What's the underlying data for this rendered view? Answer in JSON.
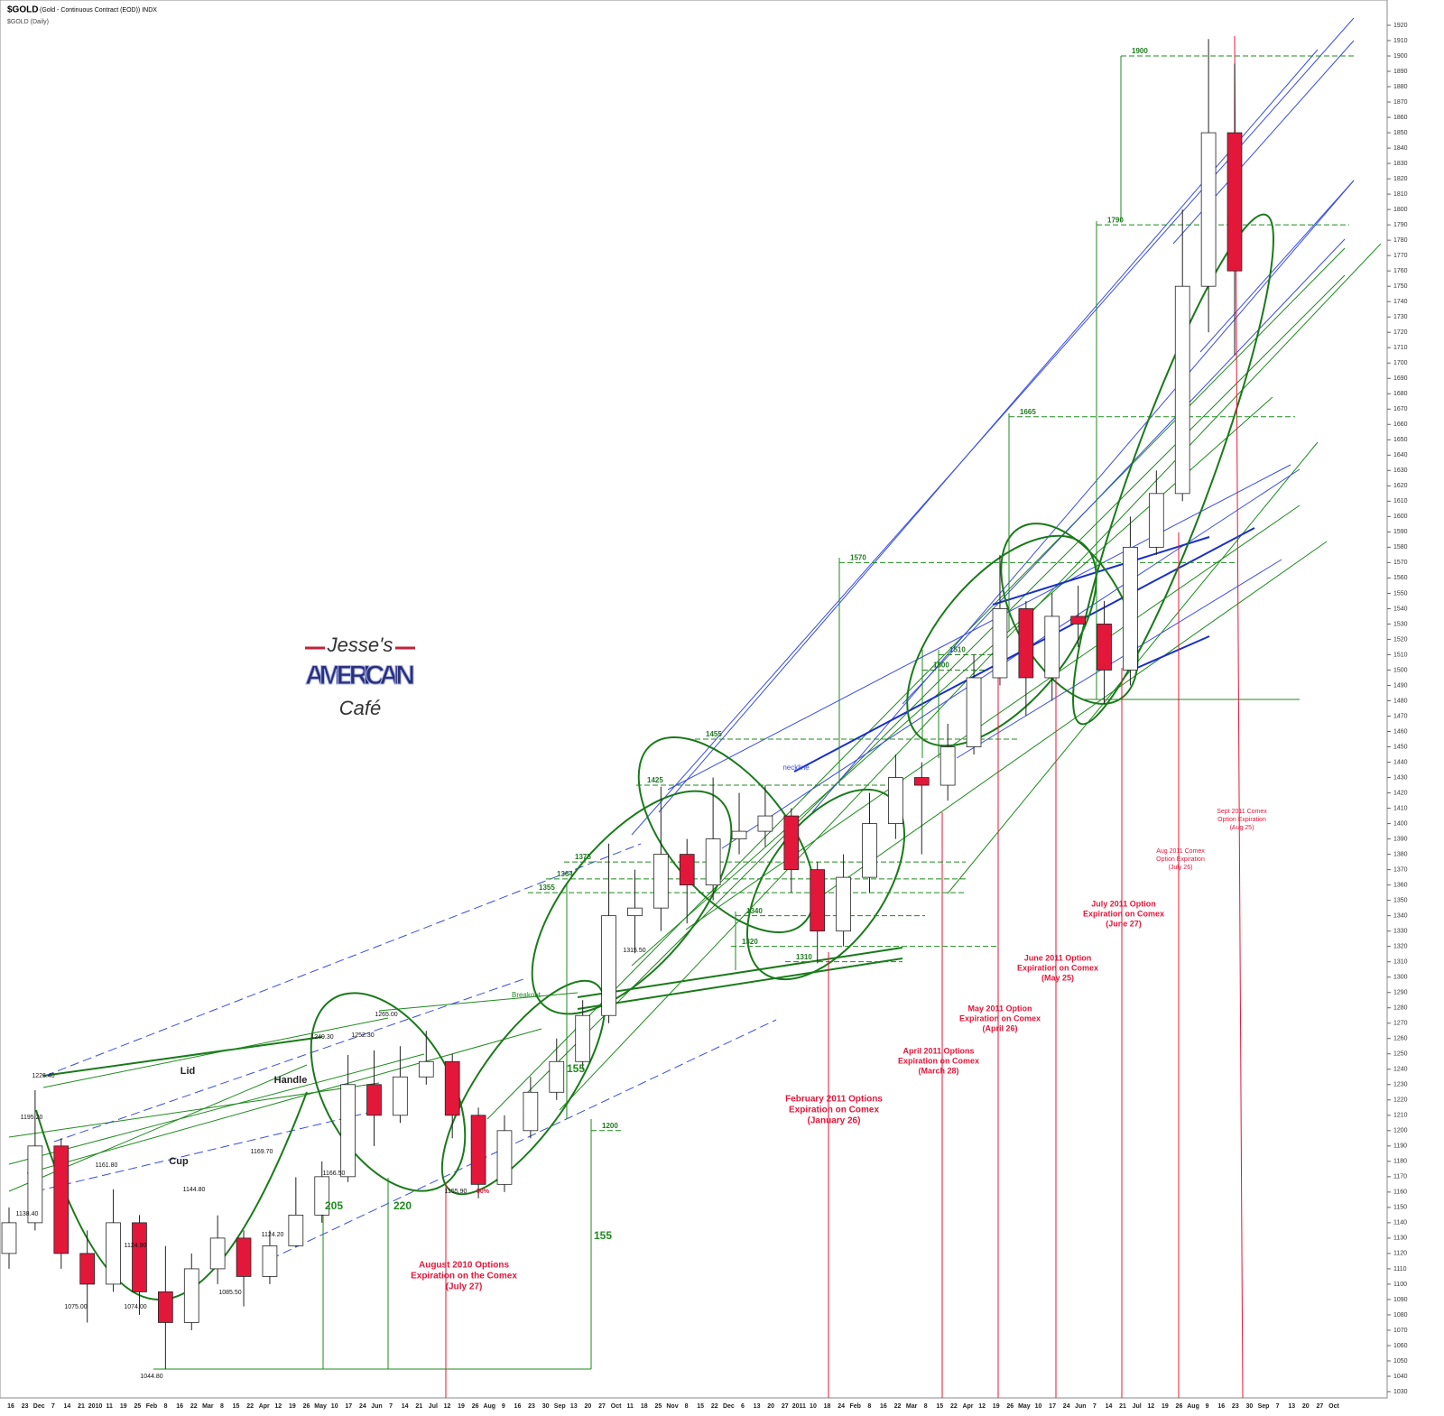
{
  "chart_data": {
    "type": "candlestick",
    "ticker": "$GOLD",
    "title": "(Gold - Continuous Contract (EOD)) INDX",
    "subtitle": "$GOLD (Daily)",
    "logo": {
      "top": "Jesse's",
      "middle": "AMERICAIN",
      "bottom": "Café"
    },
    "open": [
      1120,
      1140,
      1190,
      1120,
      1100,
      1140,
      1095,
      1075,
      1110,
      1130,
      1105,
      1125,
      1145,
      1170,
      1230,
      1210,
      1235,
      1245,
      1210,
      1165,
      1200,
      1225,
      1245,
      1275,
      1340,
      1345,
      1380,
      1360,
      1390,
      1395,
      1405,
      1370,
      1330,
      1365,
      1400,
      1430,
      1425,
      1450,
      1495,
      1540,
      1495,
      1535,
      1530,
      1500,
      1580,
      1615,
      1750,
      1850
    ],
    "high": [
      1150,
      1226.4,
      1195,
      1135,
      1161.8,
      1145,
      1124.9,
      1120,
      1144.8,
      1135,
      1135,
      1169.7,
      1180,
      1249.3,
      1252.3,
      1255,
      1265,
      1250,
      1215,
      1210,
      1235,
      1260,
      1285,
      1387,
      1370,
      1424,
      1390,
      1430,
      1420,
      1425,
      1410,
      1375,
      1380,
      1420,
      1445,
      1440,
      1465,
      1510,
      1575,
      1545,
      1550,
      1555,
      1545,
      1600,
      1630,
      1800,
      1911,
      1895
    ],
    "low": [
      1110,
      1135,
      1110,
      1075,
      1095,
      1080,
      1044.8,
      1070,
      1100,
      1085.5,
      1100,
      1124.2,
      1140,
      1166.5,
      1190,
      1205,
      1230,
      1195,
      1155.9,
      1160,
      1195,
      1220,
      1240,
      1270,
      1315.5,
      1330,
      1335,
      1350,
      1380,
      1385,
      1355,
      1309,
      1320,
      1355,
      1390,
      1380,
      1415,
      1445,
      1490,
      1470,
      1480,
      1515,
      1478,
      1490,
      1575,
      1610,
      1720,
      1705
    ],
    "close": [
      1140,
      1190,
      1120,
      1100,
      1140,
      1095,
      1075,
      1110,
      1130,
      1105,
      1125,
      1145,
      1170,
      1230,
      1210,
      1235,
      1245,
      1210,
      1165,
      1200,
      1225,
      1245,
      1275,
      1340,
      1345,
      1380,
      1360,
      1390,
      1395,
      1405,
      1370,
      1330,
      1365,
      1400,
      1430,
      1425,
      1450,
      1495,
      1540,
      1495,
      1535,
      1530,
      1500,
      1580,
      1615,
      1750,
      1850,
      1760
    ],
    "up_color": "#ffffff",
    "down_color": "#e3173a",
    "wick_color": "#222222",
    "ylim": [
      1030,
      1920
    ],
    "yticks": [
      1030,
      1040,
      1050,
      1060,
      1070,
      1080,
      1090,
      1100,
      1110,
      1120,
      1130,
      1140,
      1150,
      1160,
      1170,
      1180,
      1190,
      1200,
      1210,
      1220,
      1230,
      1240,
      1250,
      1260,
      1270,
      1280,
      1290,
      1300,
      1310,
      1320,
      1330,
      1340,
      1350,
      1360,
      1370,
      1380,
      1390,
      1400,
      1410,
      1420,
      1430,
      1440,
      1450,
      1460,
      1470,
      1480,
      1490,
      1500,
      1510,
      1520,
      1530,
      1540,
      1550,
      1560,
      1570,
      1580,
      1590,
      1600,
      1610,
      1620,
      1630,
      1640,
      1650,
      1660,
      1670,
      1680,
      1690,
      1700,
      1710,
      1720,
      1730,
      1740,
      1750,
      1760,
      1770,
      1780,
      1790,
      1800,
      1810,
      1820,
      1830,
      1840,
      1850,
      1860,
      1870,
      1880,
      1890,
      1900,
      1910,
      1920
    ],
    "xtick_labels": [
      "16",
      "23",
      "Dec",
      "7",
      "14",
      "21",
      "2010",
      "11",
      "19",
      "25",
      "Feb",
      "8",
      "16",
      "22",
      "Mar",
      "8",
      "15",
      "22",
      "Apr",
      "12",
      "19",
      "26",
      "May",
      "10",
      "17",
      "24",
      "Jun",
      "7",
      "14",
      "21",
      "Jul",
      "12",
      "19",
      "26",
      "Aug",
      "9",
      "16",
      "23",
      "30",
      "Sep",
      "13",
      "20",
      "27",
      "Oct",
      "11",
      "18",
      "25",
      "Nov",
      "8",
      "15",
      "22",
      "Dec",
      "6",
      "13",
      "20",
      "27",
      "2011",
      "10",
      "18",
      "24",
      "Feb",
      "8",
      "16",
      "22",
      "Mar",
      "8",
      "15",
      "22",
      "Apr",
      "12",
      "19",
      "26",
      "May",
      "10",
      "17",
      "24",
      "Jun",
      "7",
      "14",
      "21",
      "Jul",
      "12",
      "19",
      "26",
      "Aug",
      "9",
      "16",
      "23",
      "30",
      "Sep",
      "7",
      "13",
      "20",
      "27",
      "Oct"
    ],
    "levels": [
      1900,
      1790,
      1665,
      1570,
      1510,
      1500,
      1455,
      1425,
      1375,
      1364,
      1355,
      1340,
      1320,
      1310,
      1200
    ],
    "price_labels": [
      "1138.40",
      "1226.40",
      "1195.20",
      "1161.80",
      "1124.90",
      "1075.00",
      "1074.00",
      "1044.80",
      "1144.80",
      "1085.50",
      "1169.70",
      "1124.20",
      "1249.30",
      "1166.50",
      "1252.30",
      "1265.00",
      "1155.90",
      "1315.50"
    ],
    "annotations": [
      "Lid",
      "Handle",
      "Cup",
      "Breakout",
      "neckline",
      "50%",
      "205",
      "220",
      "155",
      "155"
    ],
    "notes": [
      [
        "August 2010 Options",
        "Expiration on the Comex",
        "(July 27)"
      ],
      [
        "February 2011 Options",
        "Expiration on Comex",
        "(January 26)"
      ],
      [
        "April 2011 Options",
        "Expiration on Comex",
        "(March 28)"
      ],
      [
        "May 2011 Option",
        "Expiration on Comex",
        "(April 26)"
      ],
      [
        "June 2011 Option",
        "Expiration on Comex",
        "(May 25)"
      ],
      [
        "July 2011 Option",
        "Expiration on Comex",
        "(June 27)"
      ],
      [
        "Aug 2011 Comex",
        "Option Expiration",
        "(July 26)"
      ],
      [
        "Sept 2011 Comex",
        "Option Expiration",
        "(Aug 25)"
      ]
    ]
  }
}
